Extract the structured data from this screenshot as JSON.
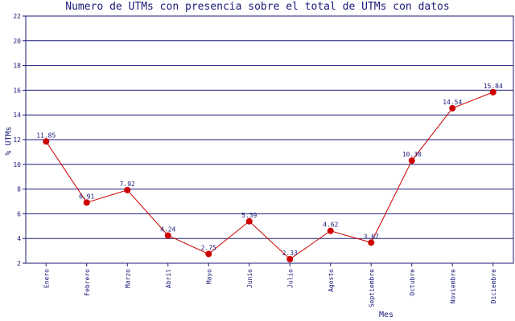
{
  "chart_data": {
    "type": "line",
    "title": "Numero de UTMs con presencia sobre el total de UTMs con datos",
    "xlabel": "Mes",
    "ylabel": "% UTMs",
    "categories": [
      "Enero",
      "Febrero",
      "Marzo",
      "Abril",
      "Mayo",
      "Junio",
      "Julio",
      "Agosto",
      "Septiembre",
      "Octubre",
      "Noviembre",
      "Diciembre"
    ],
    "series": [
      {
        "values": [
          11.85,
          6.91,
          7.92,
          4.24,
          2.75,
          5.39,
          2.33,
          4.62,
          3.67,
          10.3,
          14.54,
          15.84
        ],
        "labels": [
          "11.85",
          "6.91",
          "7.92",
          "4.24",
          "2.75",
          "5.39",
          "2.33",
          "4.62",
          "3.67",
          "10.30",
          "14.54",
          "15.84"
        ],
        "color": "#cc0000"
      }
    ],
    "ylim": [
      2,
      22
    ],
    "yticks": [
      2,
      4,
      6,
      8,
      10,
      12,
      14,
      16,
      18,
      20,
      22
    ],
    "grid": true,
    "axis_color": "#1a1a7a"
  }
}
